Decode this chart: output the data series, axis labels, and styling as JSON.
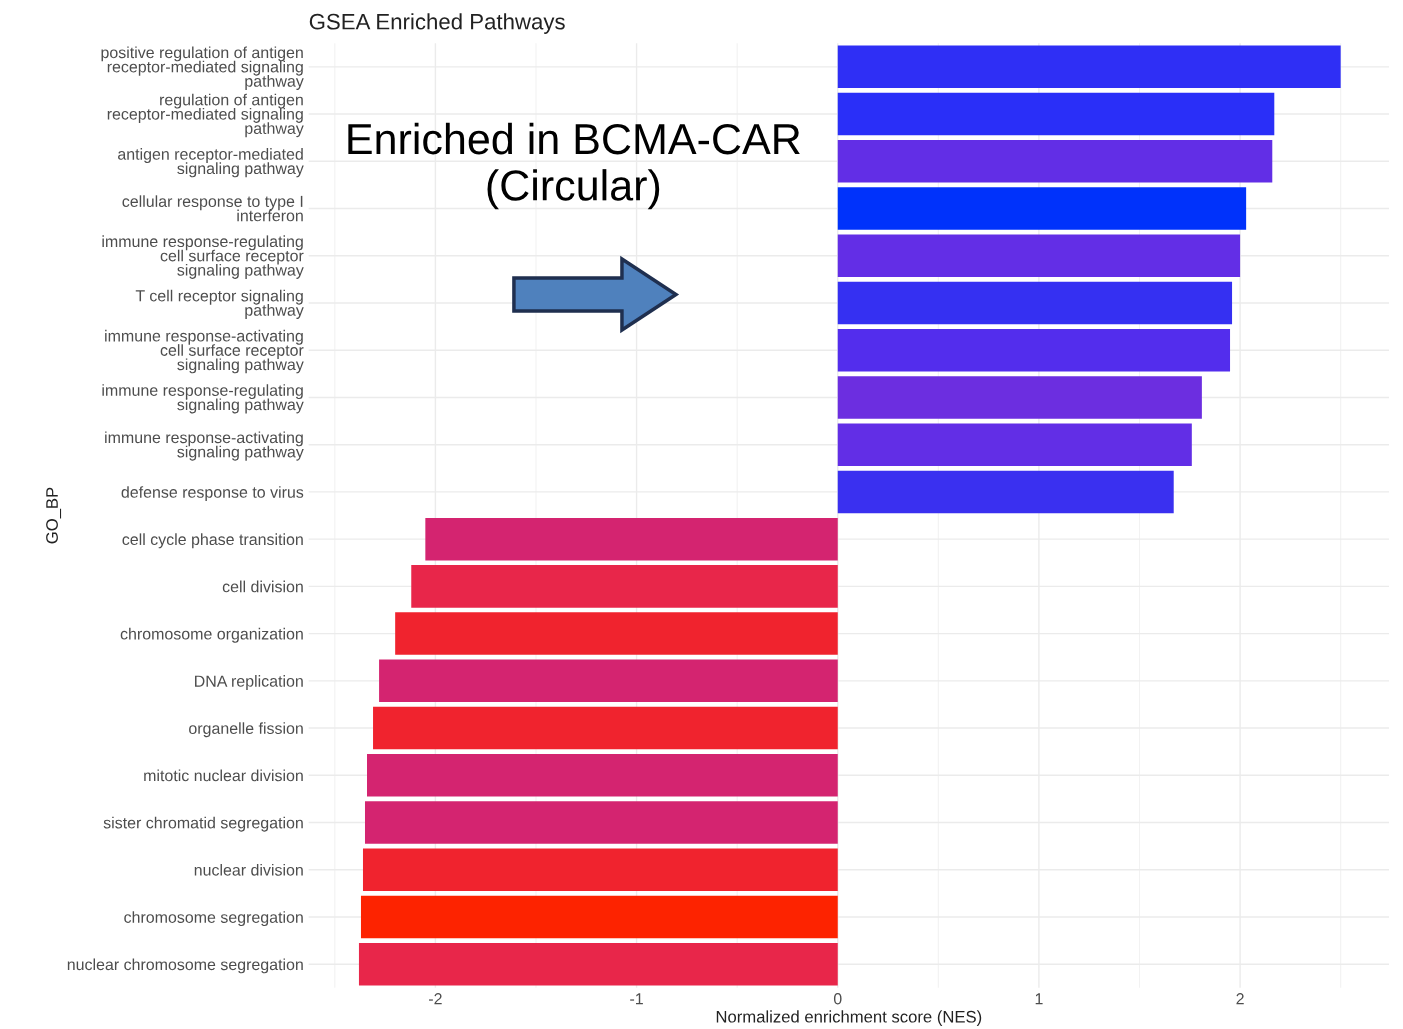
{
  "chart_data": {
    "type": "bar",
    "orientation": "horizontal",
    "title": "GSEA Enriched Pathways",
    "xlabel": "Normalized enrichment score (NES)",
    "ylabel": "GO_BP",
    "categories": [
      "positive regulation of antigen\nreceptor-mediated signaling\npathway",
      "regulation of antigen\nreceptor-mediated signaling\npathway",
      "antigen receptor-mediated\nsignaling pathway",
      "cellular response to type I\ninterferon",
      "immune response-regulating\ncell surface receptor\nsignaling pathway",
      "T cell receptor signaling\npathway",
      "immune response-activating\ncell surface receptor\nsignaling pathway",
      "immune response-regulating\nsignaling pathway",
      "immune response-activating\nsignaling pathway",
      "defense response to virus",
      "cell cycle phase transition",
      "cell division",
      "chromosome organization",
      "DNA replication",
      "organelle fission",
      "mitotic nuclear division",
      "sister chromatid segregation",
      "nuclear division",
      "chromosome segregation",
      "nuclear chromosome segregation"
    ],
    "values": [
      2.5,
      2.17,
      2.16,
      2.03,
      2.0,
      1.96,
      1.95,
      1.81,
      1.76,
      1.67,
      -2.05,
      -2.12,
      -2.2,
      -2.28,
      -2.31,
      -2.34,
      -2.35,
      -2.36,
      -2.37,
      -2.38
    ],
    "colors": [
      "#2f2ff5",
      "#2a2ff8",
      "#622ee6",
      "#0032fb",
      "#632ee6",
      "#3530f2",
      "#532ded",
      "#6c2ee0",
      "#622ee6",
      "#3a30f0",
      "#d42470",
      "#e8264a",
      "#f0232e",
      "#d42470",
      "#f0232e",
      "#d42470",
      "#d42470",
      "#f0232e",
      "#fd2300",
      "#e8264a"
    ],
    "xlim": [
      -2.63,
      2.74
    ],
    "xticks": [
      -2,
      -1,
      0,
      1,
      2
    ],
    "grid": true,
    "annotations": [
      "Enriched in BCMA-CAR\n(Circular)"
    ]
  }
}
